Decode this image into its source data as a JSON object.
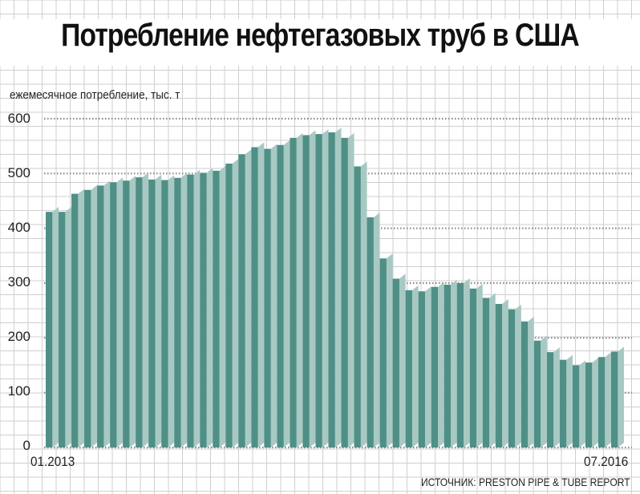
{
  "chart_data": {
    "type": "bar",
    "title": "Потребление нефтегазовых труб в США",
    "ylabel": "ежемесячное потребление, тыс. т",
    "xlabel": "",
    "ylim": [
      0,
      600
    ],
    "yticks": [
      "600",
      "500",
      "400",
      "300",
      "200",
      "100",
      "0"
    ],
    "x_start_label": "01.2013",
    "x_end_label": "07.2016",
    "source": "ИСТОЧНИК: PRESTON PIPE & TUBE REPORT",
    "grid": true,
    "colors": {
      "bar_front": "#4f8f86",
      "bar_side": "#a8c9c3",
      "grid": "#cfcfcf",
      "dotted_line": "#888888"
    },
    "values": [
      430,
      430,
      463,
      470,
      478,
      484,
      487,
      493,
      489,
      488,
      492,
      498,
      501,
      505,
      518,
      535,
      548,
      545,
      552,
      565,
      570,
      572,
      575,
      565,
      513,
      420,
      345,
      308,
      287,
      285,
      293,
      297,
      300,
      290,
      273,
      262,
      252,
      230,
      195,
      174,
      160,
      150,
      155,
      165,
      175
    ]
  }
}
